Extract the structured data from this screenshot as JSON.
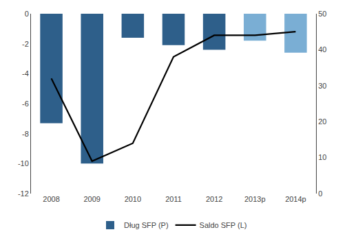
{
  "chart_data": {
    "type": "bar",
    "categories": [
      "2008",
      "2009",
      "2010",
      "2011",
      "2012",
      "2013p",
      "2014p"
    ],
    "series": [
      {
        "name": "Dług SFP (P)",
        "type": "bar",
        "colors": [
          "#2e5f8a",
          "#2e5f8a",
          "#2e5f8a",
          "#2e5f8a",
          "#2e5f8a",
          "#7aaed4",
          "#7aaed4"
        ],
        "values": [
          -7.3,
          -10.0,
          -1.6,
          -2.1,
          -2.4,
          -1.8,
          -2.6
        ]
      },
      {
        "name": "Saldo SFP (L)",
        "type": "line",
        "color": "#000000",
        "axis": "y2",
        "values": [
          32,
          9,
          14,
          38,
          44,
          44,
          45
        ]
      }
    ],
    "ylim": [
      -12,
      0
    ],
    "yticks": [
      0,
      -2,
      -4,
      -6,
      -8,
      -10,
      -12
    ],
    "y2lim": [
      0,
      50
    ],
    "y2ticks": [
      0,
      10,
      20,
      30,
      40,
      50
    ],
    "grid": false,
    "legend": "bottom"
  }
}
